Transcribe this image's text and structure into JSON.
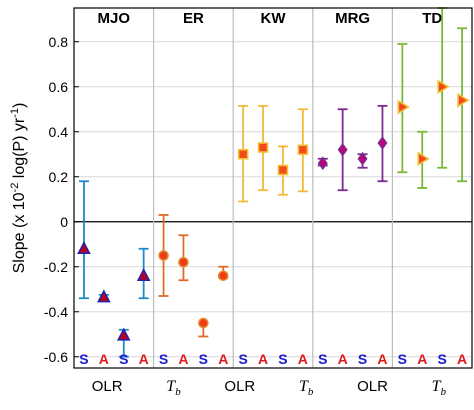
{
  "chart_data": {
    "type": "scatter",
    "ylabel_main": "Slope (x 10",
    "ylabel_exp1": "-2",
    "ylabel_mid": " log(P) yr",
    "ylabel_exp2": "-1",
    "ylabel_end": ")",
    "ylim": [
      -0.65,
      0.95
    ],
    "yticks": [
      0.8,
      0.6,
      0.4,
      0.2,
      0,
      -0.2,
      -0.4,
      -0.6
    ],
    "ytick_labels": [
      "0.8",
      "0.6",
      "0.4",
      "0.2",
      "0",
      "-0.2",
      "-0.4",
      "-0.6"
    ],
    "grid": true,
    "panels": [
      {
        "name": "MJO",
        "color": "#1f8ac9",
        "marker": "triangle",
        "marker_fill": "#c0001a",
        "marker_edge": "#2222aa",
        "points": [
          {
            "x": "OLR-S",
            "value": -0.12,
            "low": -0.34,
            "high": 0.18
          },
          {
            "x": "OLR-A",
            "value": -0.335,
            "low": -0.345,
            "high": -0.325
          },
          {
            "x": "Tb-S",
            "value": -0.505,
            "low": -0.6,
            "high": -0.48
          },
          {
            "x": "Tb-A",
            "value": -0.24,
            "low": -0.34,
            "high": -0.12
          }
        ]
      },
      {
        "name": "ER",
        "color": "#e06a2a",
        "marker": "circle",
        "marker_fill": "#f03a1a",
        "marker_edge": "#e08a2a",
        "points": [
          {
            "x": "OLR-S",
            "value": -0.15,
            "low": -0.33,
            "high": 0.03
          },
          {
            "x": "OLR-A",
            "value": -0.18,
            "low": -0.26,
            "high": -0.06
          },
          {
            "x": "Tb-S",
            "value": -0.45,
            "low": -0.51,
            "high": -0.45
          },
          {
            "x": "Tb-A",
            "value": -0.24,
            "low": -0.25,
            "high": -0.2
          }
        ]
      },
      {
        "name": "KW",
        "color": "#f2b93a",
        "marker": "square",
        "marker_fill": "#f24a1a",
        "marker_edge": "#f2c23a",
        "points": [
          {
            "x": "OLR-S",
            "value": 0.3,
            "low": 0.09,
            "high": 0.515
          },
          {
            "x": "OLR-A",
            "value": 0.33,
            "low": 0.14,
            "high": 0.515
          },
          {
            "x": "Tb-S",
            "value": 0.23,
            "low": 0.12,
            "high": 0.335
          },
          {
            "x": "Tb-A",
            "value": 0.32,
            "low": 0.135,
            "high": 0.5
          }
        ]
      },
      {
        "name": "MRG",
        "color": "#7b2a8e",
        "marker": "diamond",
        "marker_fill": "#c0007a",
        "marker_edge": "#7b2a8e",
        "points": [
          {
            "x": "OLR-S",
            "value": 0.26,
            "low": 0.25,
            "high": 0.28
          },
          {
            "x": "OLR-A",
            "value": 0.32,
            "low": 0.14,
            "high": 0.5
          },
          {
            "x": "Tb-S",
            "value": 0.28,
            "low": 0.24,
            "high": 0.3
          },
          {
            "x": "Tb-A",
            "value": 0.35,
            "low": 0.18,
            "high": 0.515
          }
        ]
      },
      {
        "name": "TD",
        "color": "#7ab83a",
        "marker": "triangle-right",
        "marker_fill": "#f24a1a",
        "marker_edge": "#f2c23a",
        "points": [
          {
            "x": "OLR-S",
            "value": 0.51,
            "low": 0.22,
            "high": 0.79
          },
          {
            "x": "OLR-A",
            "value": 0.28,
            "low": 0.15,
            "high": 0.4
          },
          {
            "x": "Tb-S",
            "value": 0.6,
            "low": 0.24,
            "high": 0.95
          },
          {
            "x": "Tb-A",
            "value": 0.54,
            "low": 0.18,
            "high": 0.86
          }
        ]
      }
    ],
    "sa_labels": [
      "S",
      "A",
      "S",
      "A"
    ],
    "sa_colors": {
      "S": "#1a1ad0",
      "A": "#e01a1a"
    },
    "group_labels": [
      "OLR",
      "T",
      "OLR",
      "T",
      "OLR",
      "T"
    ],
    "group_sub": "b"
  }
}
